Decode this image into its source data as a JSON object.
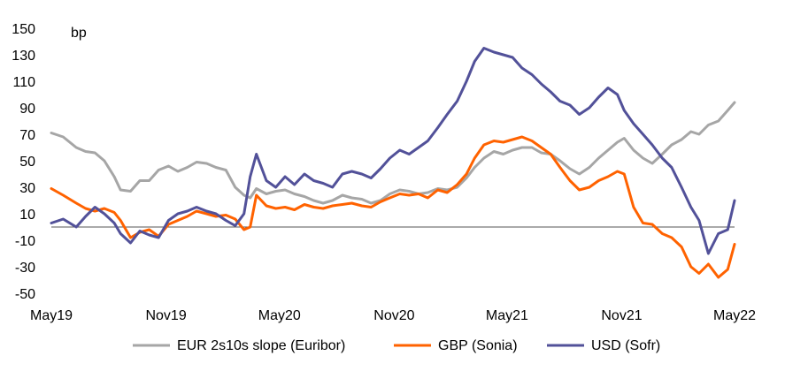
{
  "chart_data": {
    "type": "line",
    "title": "",
    "ylabel": "bp",
    "xlabel": "",
    "ylim": [
      -50,
      150
    ],
    "yticks": [
      150,
      130,
      110,
      90,
      70,
      50,
      30,
      10,
      -10,
      -30,
      -50
    ],
    "xlim": [
      "2019-05-01",
      "2022-05-01"
    ],
    "xticks": [
      {
        "label": "May19",
        "date": "2019-05-01"
      },
      {
        "label": "Nov19",
        "date": "2019-11-01"
      },
      {
        "label": "May20",
        "date": "2020-05-01"
      },
      {
        "label": "Nov20",
        "date": "2020-11-01"
      },
      {
        "label": "May21",
        "date": "2021-05-01"
      },
      {
        "label": "Nov21",
        "date": "2021-11-01"
      },
      {
        "label": "May22",
        "date": "2022-05-01"
      }
    ],
    "zero_line": 0,
    "grid": false,
    "legend_position": "bottom",
    "series": [
      {
        "name": "EUR 2s10s slope (Euribor)",
        "color": "#a6a6a6",
        "points": [
          [
            "2019-05-01",
            71
          ],
          [
            "2019-05-20",
            68
          ],
          [
            "2019-06-10",
            60
          ],
          [
            "2019-06-25",
            57
          ],
          [
            "2019-07-10",
            56
          ],
          [
            "2019-07-25",
            50
          ],
          [
            "2019-08-10",
            38
          ],
          [
            "2019-08-20",
            28
          ],
          [
            "2019-09-05",
            27
          ],
          [
            "2019-09-20",
            35
          ],
          [
            "2019-10-05",
            35
          ],
          [
            "2019-10-20",
            43
          ],
          [
            "2019-11-05",
            46
          ],
          [
            "2019-11-20",
            42
          ],
          [
            "2019-12-05",
            45
          ],
          [
            "2019-12-20",
            49
          ],
          [
            "2020-01-05",
            48
          ],
          [
            "2020-01-20",
            45
          ],
          [
            "2020-02-05",
            43
          ],
          [
            "2020-02-20",
            30
          ],
          [
            "2020-03-05",
            24
          ],
          [
            "2020-03-15",
            22
          ],
          [
            "2020-03-25",
            29
          ],
          [
            "2020-04-10",
            25
          ],
          [
            "2020-04-25",
            27
          ],
          [
            "2020-05-10",
            28
          ],
          [
            "2020-05-25",
            25
          ],
          [
            "2020-06-10",
            23
          ],
          [
            "2020-06-25",
            20
          ],
          [
            "2020-07-10",
            18
          ],
          [
            "2020-07-25",
            20
          ],
          [
            "2020-08-10",
            24
          ],
          [
            "2020-08-25",
            22
          ],
          [
            "2020-09-10",
            21
          ],
          [
            "2020-09-25",
            18
          ],
          [
            "2020-10-10",
            20
          ],
          [
            "2020-10-25",
            25
          ],
          [
            "2020-11-10",
            28
          ],
          [
            "2020-11-25",
            27
          ],
          [
            "2020-12-10",
            25
          ],
          [
            "2020-12-25",
            26
          ],
          [
            "2021-01-10",
            29
          ],
          [
            "2021-01-25",
            28
          ],
          [
            "2021-02-10",
            30
          ],
          [
            "2021-02-25",
            37
          ],
          [
            "2021-03-10",
            45
          ],
          [
            "2021-03-25",
            52
          ],
          [
            "2021-04-10",
            57
          ],
          [
            "2021-04-25",
            55
          ],
          [
            "2021-05-10",
            58
          ],
          [
            "2021-05-25",
            60
          ],
          [
            "2021-06-10",
            60
          ],
          [
            "2021-06-25",
            56
          ],
          [
            "2021-07-10",
            55
          ],
          [
            "2021-07-25",
            50
          ],
          [
            "2021-08-10",
            44
          ],
          [
            "2021-08-25",
            40
          ],
          [
            "2021-09-10",
            45
          ],
          [
            "2021-09-25",
            52
          ],
          [
            "2021-10-10",
            58
          ],
          [
            "2021-10-25",
            64
          ],
          [
            "2021-11-05",
            67
          ],
          [
            "2021-11-20",
            58
          ],
          [
            "2021-12-05",
            52
          ],
          [
            "2021-12-20",
            48
          ],
          [
            "2022-01-05",
            55
          ],
          [
            "2022-01-20",
            62
          ],
          [
            "2022-02-05",
            66
          ],
          [
            "2022-02-20",
            72
          ],
          [
            "2022-03-05",
            70
          ],
          [
            "2022-03-20",
            77
          ],
          [
            "2022-04-05",
            80
          ],
          [
            "2022-04-20",
            88
          ],
          [
            "2022-05-01",
            94
          ]
        ]
      },
      {
        "name": "GBP (Sonia)",
        "color": "#ff6200",
        "points": [
          [
            "2019-05-01",
            29
          ],
          [
            "2019-05-20",
            24
          ],
          [
            "2019-06-10",
            18
          ],
          [
            "2019-06-25",
            14
          ],
          [
            "2019-07-10",
            12
          ],
          [
            "2019-07-25",
            14
          ],
          [
            "2019-08-10",
            11
          ],
          [
            "2019-08-20",
            5
          ],
          [
            "2019-09-05",
            -8
          ],
          [
            "2019-09-20",
            -4
          ],
          [
            "2019-10-05",
            -2
          ],
          [
            "2019-10-20",
            -7
          ],
          [
            "2019-11-05",
            2
          ],
          [
            "2019-11-20",
            5
          ],
          [
            "2019-12-05",
            8
          ],
          [
            "2019-12-20",
            12
          ],
          [
            "2020-01-05",
            10
          ],
          [
            "2020-01-20",
            8
          ],
          [
            "2020-02-05",
            9
          ],
          [
            "2020-02-20",
            6
          ],
          [
            "2020-03-05",
            -2
          ],
          [
            "2020-03-15",
            0
          ],
          [
            "2020-03-25",
            24
          ],
          [
            "2020-04-10",
            16
          ],
          [
            "2020-04-25",
            14
          ],
          [
            "2020-05-10",
            15
          ],
          [
            "2020-05-25",
            13
          ],
          [
            "2020-06-10",
            17
          ],
          [
            "2020-06-25",
            15
          ],
          [
            "2020-07-10",
            14
          ],
          [
            "2020-07-25",
            16
          ],
          [
            "2020-08-10",
            17
          ],
          [
            "2020-08-25",
            18
          ],
          [
            "2020-09-10",
            16
          ],
          [
            "2020-09-25",
            15
          ],
          [
            "2020-10-10",
            19
          ],
          [
            "2020-10-25",
            22
          ],
          [
            "2020-11-10",
            25
          ],
          [
            "2020-11-25",
            24
          ],
          [
            "2020-12-10",
            25
          ],
          [
            "2020-12-25",
            22
          ],
          [
            "2021-01-10",
            28
          ],
          [
            "2021-01-25",
            26
          ],
          [
            "2021-02-10",
            32
          ],
          [
            "2021-02-25",
            40
          ],
          [
            "2021-03-10",
            52
          ],
          [
            "2021-03-25",
            62
          ],
          [
            "2021-04-10",
            65
          ],
          [
            "2021-04-25",
            64
          ],
          [
            "2021-05-10",
            66
          ],
          [
            "2021-05-25",
            68
          ],
          [
            "2021-06-10",
            65
          ],
          [
            "2021-06-25",
            60
          ],
          [
            "2021-07-10",
            55
          ],
          [
            "2021-07-25",
            45
          ],
          [
            "2021-08-10",
            35
          ],
          [
            "2021-08-25",
            28
          ],
          [
            "2021-09-10",
            30
          ],
          [
            "2021-09-25",
            35
          ],
          [
            "2021-10-10",
            38
          ],
          [
            "2021-10-25",
            42
          ],
          [
            "2021-11-05",
            40
          ],
          [
            "2021-11-20",
            15
          ],
          [
            "2021-12-05",
            3
          ],
          [
            "2021-12-20",
            2
          ],
          [
            "2022-01-05",
            -5
          ],
          [
            "2022-01-20",
            -8
          ],
          [
            "2022-02-05",
            -15
          ],
          [
            "2022-02-20",
            -30
          ],
          [
            "2022-03-05",
            -35
          ],
          [
            "2022-03-20",
            -28
          ],
          [
            "2022-04-05",
            -38
          ],
          [
            "2022-04-20",
            -32
          ],
          [
            "2022-05-01",
            -13
          ]
        ]
      },
      {
        "name": "USD (Sofr)",
        "color": "#525199",
        "points": [
          [
            "2019-05-01",
            3
          ],
          [
            "2019-05-20",
            6
          ],
          [
            "2019-06-10",
            0
          ],
          [
            "2019-06-25",
            8
          ],
          [
            "2019-07-10",
            15
          ],
          [
            "2019-07-25",
            10
          ],
          [
            "2019-08-10",
            3
          ],
          [
            "2019-08-20",
            -5
          ],
          [
            "2019-09-05",
            -12
          ],
          [
            "2019-09-20",
            -3
          ],
          [
            "2019-10-05",
            -6
          ],
          [
            "2019-10-20",
            -8
          ],
          [
            "2019-11-05",
            5
          ],
          [
            "2019-11-20",
            10
          ],
          [
            "2019-12-05",
            12
          ],
          [
            "2019-12-20",
            15
          ],
          [
            "2020-01-05",
            12
          ],
          [
            "2020-01-20",
            10
          ],
          [
            "2020-02-05",
            5
          ],
          [
            "2020-02-20",
            1
          ],
          [
            "2020-03-05",
            10
          ],
          [
            "2020-03-15",
            38
          ],
          [
            "2020-03-25",
            55
          ],
          [
            "2020-04-10",
            35
          ],
          [
            "2020-04-25",
            30
          ],
          [
            "2020-05-10",
            38
          ],
          [
            "2020-05-25",
            32
          ],
          [
            "2020-06-10",
            40
          ],
          [
            "2020-06-25",
            35
          ],
          [
            "2020-07-10",
            33
          ],
          [
            "2020-07-25",
            30
          ],
          [
            "2020-08-10",
            40
          ],
          [
            "2020-08-25",
            42
          ],
          [
            "2020-09-10",
            40
          ],
          [
            "2020-09-25",
            37
          ],
          [
            "2020-10-10",
            44
          ],
          [
            "2020-10-25",
            52
          ],
          [
            "2020-11-10",
            58
          ],
          [
            "2020-11-25",
            55
          ],
          [
            "2020-12-10",
            60
          ],
          [
            "2020-12-25",
            65
          ],
          [
            "2021-01-10",
            75
          ],
          [
            "2021-01-25",
            85
          ],
          [
            "2021-02-10",
            95
          ],
          [
            "2021-02-25",
            110
          ],
          [
            "2021-03-10",
            125
          ],
          [
            "2021-03-25",
            135
          ],
          [
            "2021-04-10",
            132
          ],
          [
            "2021-04-25",
            130
          ],
          [
            "2021-05-10",
            128
          ],
          [
            "2021-05-25",
            120
          ],
          [
            "2021-06-10",
            115
          ],
          [
            "2021-06-25",
            108
          ],
          [
            "2021-07-10",
            102
          ],
          [
            "2021-07-25",
            95
          ],
          [
            "2021-08-10",
            92
          ],
          [
            "2021-08-25",
            85
          ],
          [
            "2021-09-10",
            90
          ],
          [
            "2021-09-25",
            98
          ],
          [
            "2021-10-10",
            105
          ],
          [
            "2021-10-25",
            100
          ],
          [
            "2021-11-05",
            88
          ],
          [
            "2021-11-20",
            78
          ],
          [
            "2021-12-05",
            70
          ],
          [
            "2021-12-20",
            62
          ],
          [
            "2022-01-05",
            52
          ],
          [
            "2022-01-20",
            45
          ],
          [
            "2022-02-05",
            30
          ],
          [
            "2022-02-20",
            15
          ],
          [
            "2022-03-05",
            5
          ],
          [
            "2022-03-20",
            -20
          ],
          [
            "2022-04-05",
            -5
          ],
          [
            "2022-04-20",
            -2
          ],
          [
            "2022-05-01",
            20
          ]
        ]
      }
    ]
  }
}
